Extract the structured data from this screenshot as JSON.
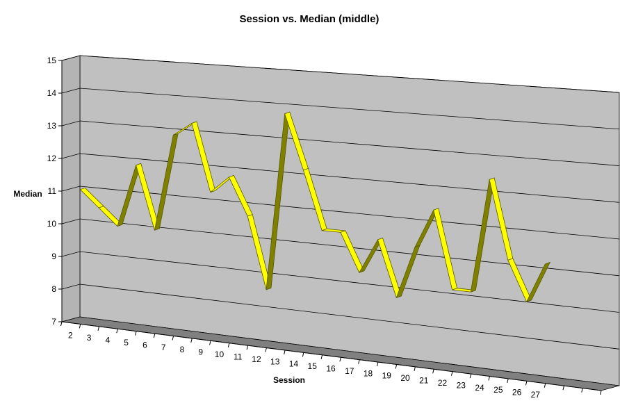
{
  "chart_data": {
    "type": "line",
    "title": "Session vs. Median (middle)",
    "xlabel": "Session",
    "ylabel": "Median",
    "x": [
      2,
      3,
      4,
      5,
      6,
      7,
      8,
      9,
      10,
      11,
      12,
      13,
      14,
      15,
      16,
      17,
      18,
      19,
      20,
      21,
      22,
      23,
      24,
      25,
      26,
      27
    ],
    "series": [
      {
        "values": [
          11.0,
          10.5,
          10.0,
          11.9,
          10.0,
          12.9,
          13.3,
          11.3,
          11.8,
          10.7,
          8.6,
          13.8,
          12.2,
          10.5,
          10.5,
          9.4,
          10.4,
          8.8,
          10.3,
          11.4,
          9.2,
          9.2,
          12.4,
          10.2,
          9.1,
          10.2
        ]
      }
    ],
    "ylim": [
      7,
      15
    ],
    "yticks": [
      7,
      8,
      9,
      10,
      11,
      12,
      13,
      14,
      15
    ],
    "grid": true,
    "legend": "none",
    "colors": {
      "line_top": "#ffff00",
      "line_side": "#808000",
      "line_edge": "#5a5a00",
      "back_wall": "#c0c0c0",
      "left_wall": "#b4b4b4",
      "floor": "#808080",
      "gridline": "#000000"
    }
  }
}
